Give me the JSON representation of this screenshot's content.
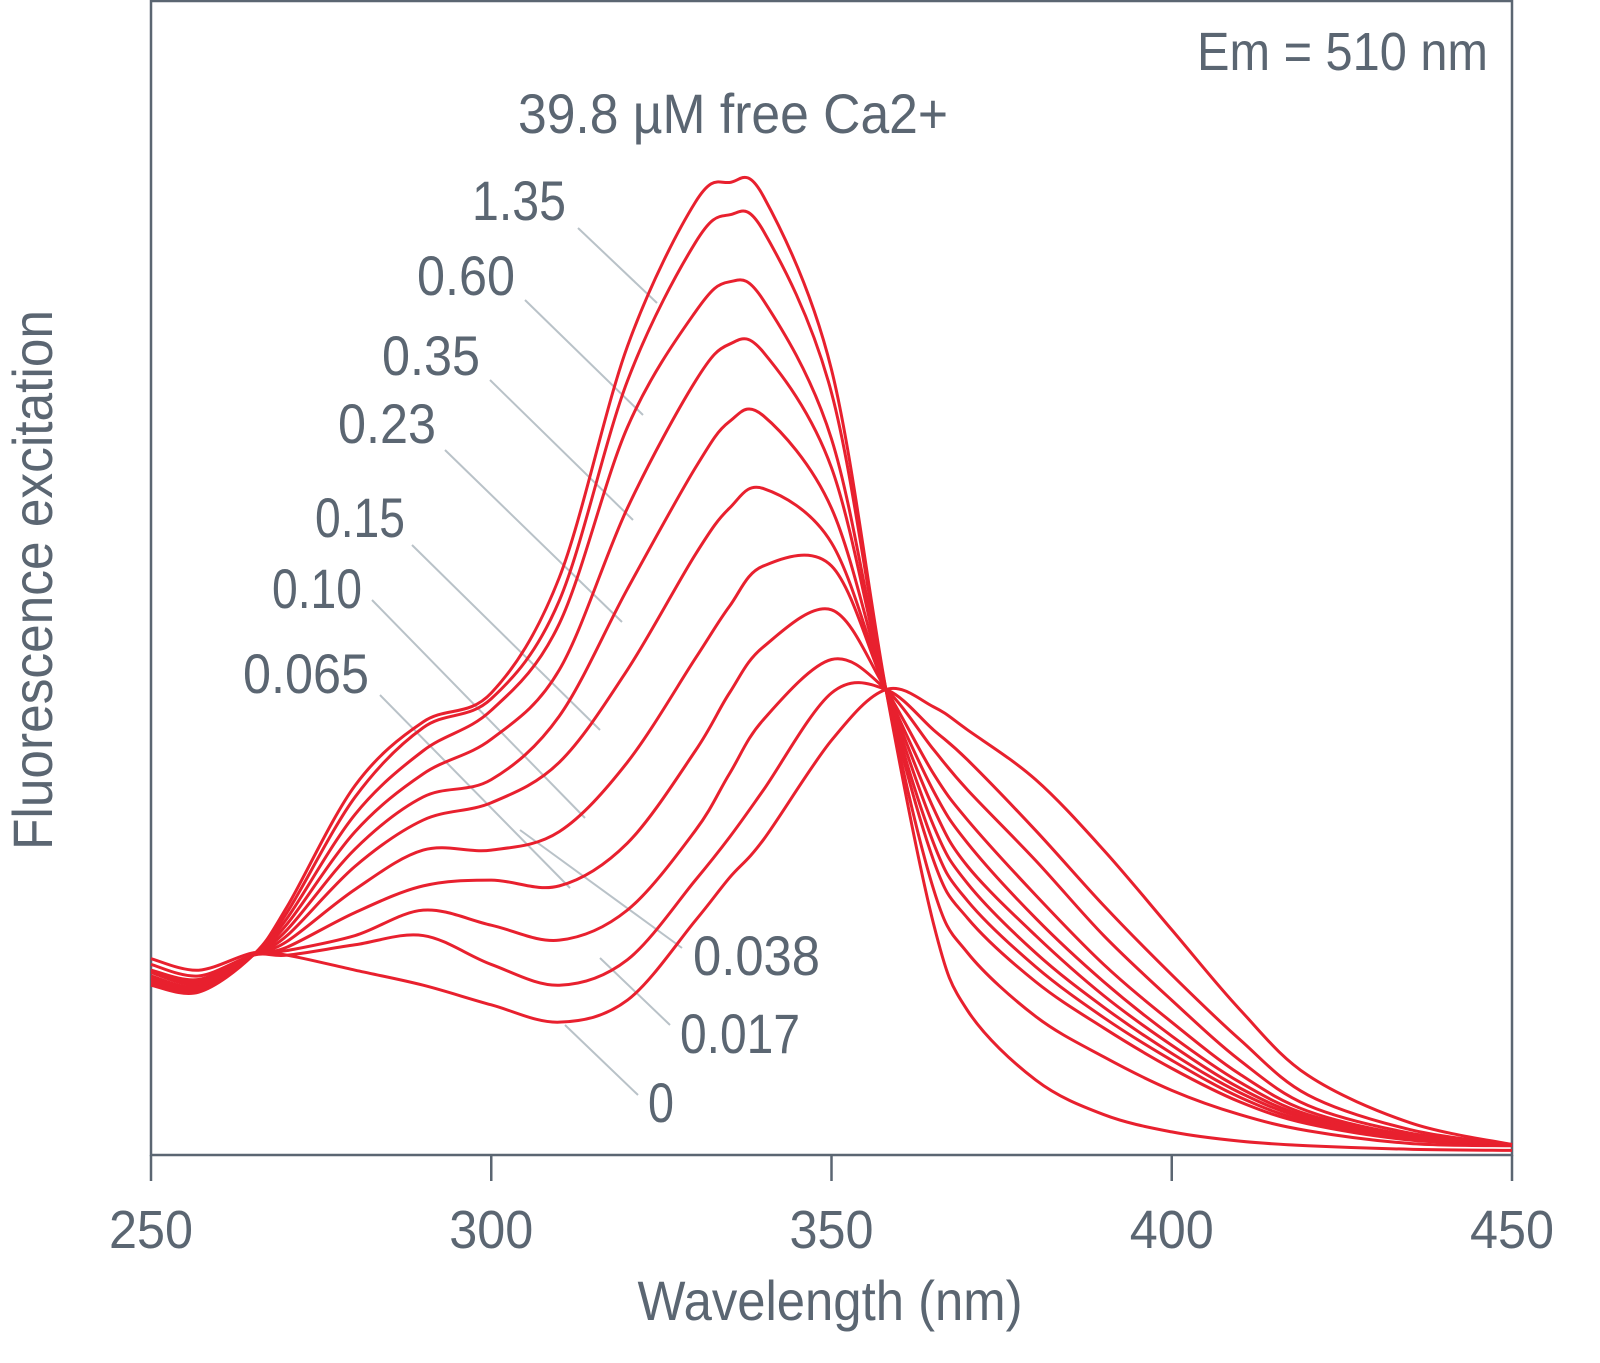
{
  "chart_data": {
    "type": "line",
    "title": "",
    "xlabel": "Wavelength (nm)",
    "ylabel": "Fluorescence excitation",
    "xlim": [
      250,
      450
    ],
    "ylim": [
      0,
      100
    ],
    "xticks": [
      "250",
      "300",
      "350",
      "400",
      "450"
    ],
    "xtick_values": [
      250,
      300,
      350,
      400,
      450
    ],
    "grid": false,
    "annotation_em": "Em = 510 nm",
    "line_color": "#e8202e",
    "x": [
      250,
      257,
      265,
      270,
      280,
      290,
      300,
      310,
      320,
      330,
      335,
      340,
      350,
      358,
      365,
      370,
      380,
      390,
      400,
      410,
      420,
      435,
      450
    ],
    "series": [
      {
        "name": "39.8 µM free Ca2+",
        "values": [
          14.7,
          14.1,
          17.3,
          21.5,
          32,
          37.5,
          40,
          50,
          70,
          82.5,
          84.2,
          83,
          68,
          40.3,
          20,
          12.5,
          6.5,
          3.5,
          2,
          1.2,
          0.8,
          0.5,
          0.4
        ]
      },
      {
        "name": "1.35",
        "values": [
          14.8,
          14.2,
          17.3,
          21,
          31,
          37,
          39.5,
          48,
          67,
          79,
          81.4,
          80,
          66,
          40.3,
          23,
          17.5,
          12,
          8.5,
          5.6,
          3.5,
          2.1,
          1,
          0.8
        ]
      },
      {
        "name": "0.60",
        "values": [
          15,
          14.3,
          17.3,
          20.5,
          29.5,
          35,
          38.5,
          46,
          63,
          73,
          75.6,
          74,
          62,
          40.3,
          25.5,
          20.5,
          15,
          11,
          7.5,
          4.6,
          2.7,
          1.3,
          0.9
        ]
      },
      {
        "name": "0.35",
        "values": [
          15.2,
          14.4,
          17.3,
          20,
          28,
          33,
          36,
          42,
          56,
          67,
          70.2,
          69.5,
          59.5,
          40.3,
          27,
          22,
          16.3,
          11.9,
          8.2,
          5,
          2.9,
          1.4,
          0.9
        ]
      },
      {
        "name": "0.23",
        "values": [
          15.3,
          14.5,
          17.3,
          19.5,
          26.5,
          31,
          32.5,
          38,
          49,
          59.5,
          63.5,
          64,
          56,
          40.3,
          28.5,
          23.5,
          17.5,
          12.8,
          8.8,
          5.4,
          3.1,
          1.4,
          0.9
        ]
      },
      {
        "name": "0.15",
        "values": [
          15.5,
          14.6,
          17.3,
          19,
          25,
          29,
          30.5,
          34,
          42,
          52,
          56,
          57.7,
          53,
          40.3,
          30,
          25,
          19,
          13.8,
          9.5,
          5.8,
          3.3,
          1.5,
          0.9
        ]
      },
      {
        "name": "0.10",
        "values": [
          15.8,
          14.8,
          17.3,
          18.5,
          23,
          26.4,
          26.4,
          28,
          34,
          43,
          47.5,
          51,
          51,
          40.3,
          31.5,
          27,
          20.5,
          15,
          10.3,
          6.3,
          3.5,
          1.6,
          0.9
        ]
      },
      {
        "name": "0.065",
        "values": [
          16,
          15,
          17.3,
          18,
          21,
          23.3,
          23.8,
          23.3,
          27,
          35,
          40,
          44,
          47.2,
          40.3,
          33,
          29,
          22.5,
          16.5,
          11.5,
          7,
          3.8,
          1.7,
          0.9
        ]
      },
      {
        "name": "0.038",
        "values": [
          16,
          15.2,
          17.3,
          17.7,
          19,
          21.2,
          19.9,
          18.6,
          21.2,
          28.1,
          33,
          37.7,
          42.9,
          40.3,
          35.1,
          31.6,
          25.5,
          19,
          13.4,
          8.2,
          4.3,
          1.9,
          0.9
        ]
      },
      {
        "name": "0.017",
        "values": [
          16.5,
          15.5,
          17.3,
          17.3,
          18.2,
          19,
          16.5,
          14.7,
          16.9,
          23.8,
          27.5,
          31.6,
          40,
          40.3,
          36.8,
          34.2,
          28.1,
          21.6,
          15.6,
          10,
          5.2,
          2.2,
          0.9
        ]
      },
      {
        "name": "0",
        "values": [
          17,
          16,
          17.5,
          17.3,
          16,
          14.7,
          13,
          11.5,
          13.4,
          20.3,
          24,
          27.3,
          35.9,
          40.3,
          38.8,
          36.8,
          32.5,
          26.4,
          19.5,
          12.6,
          6.9,
          2.8,
          0.9
        ]
      }
    ]
  }
}
